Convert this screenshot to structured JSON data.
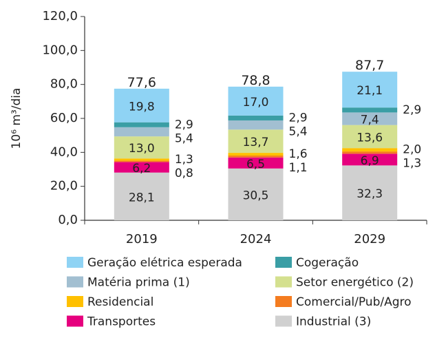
{
  "chart_data": {
    "type": "stacked_bar",
    "y_label": "10⁶ m³/dia",
    "categories": [
      "2019",
      "2024",
      "2029"
    ],
    "series": [
      {
        "name": "Industrial (3)",
        "color": "#d0d0d0",
        "values": [
          28.1,
          30.5,
          32.3
        ],
        "value_labels": [
          "28,1",
          "30,5",
          "32,3"
        ]
      },
      {
        "name": "Transportes",
        "color": "#e6007e",
        "values": [
          6.2,
          6.5,
          6.9
        ],
        "value_labels": [
          "6,2",
          "6,5",
          "6,9"
        ]
      },
      {
        "name": "Comercial/Pub/Agro",
        "color": "#f47c20",
        "values": [
          0.8,
          1.1,
          1.3
        ],
        "value_labels": [
          "0,8",
          "1,1",
          "1,3"
        ]
      },
      {
        "name": "Residencial",
        "color": "#ffc000",
        "values": [
          1.3,
          1.6,
          2.0
        ],
        "value_labels": [
          "1,3",
          "1,6",
          "2,0"
        ]
      },
      {
        "name": "Setor energético  (2)",
        "color": "#d4e08f",
        "values": [
          13.0,
          13.7,
          13.6
        ],
        "value_labels": [
          "13,0",
          "13,7",
          "13,6"
        ]
      },
      {
        "name": "Matéria prima (1)",
        "color": "#a2bfd1",
        "values": [
          5.4,
          5.4,
          7.4
        ],
        "value_labels": [
          "5,4",
          "5,4",
          "7,4"
        ]
      },
      {
        "name": "Cogeração",
        "color": "#3a9ea5",
        "values": [
          2.9,
          2.9,
          2.9
        ],
        "value_labels": [
          "2,9",
          "2,9",
          "2,9"
        ]
      },
      {
        "name": "Geração elétrica esperada",
        "color": "#8fd3f4",
        "values": [
          19.8,
          17.0,
          21.1
        ],
        "value_labels": [
          "19,8",
          "17,0",
          "21,1"
        ]
      }
    ],
    "totals": [
      77.6,
      78.8,
      87.7
    ],
    "totals_labels": [
      "77,6",
      "78,8",
      "87,7"
    ],
    "ylim": [
      0,
      120
    ],
    "yticks": [
      {
        "value": 0,
        "label": "0,0"
      },
      {
        "value": 20,
        "label": "20,0"
      },
      {
        "value": 40,
        "label": "40,0"
      },
      {
        "value": 60,
        "label": "60,0"
      },
      {
        "value": 80,
        "label": "80,0"
      },
      {
        "value": 100,
        "label": "100,0"
      },
      {
        "value": 120,
        "label": "120,0"
      }
    ]
  }
}
